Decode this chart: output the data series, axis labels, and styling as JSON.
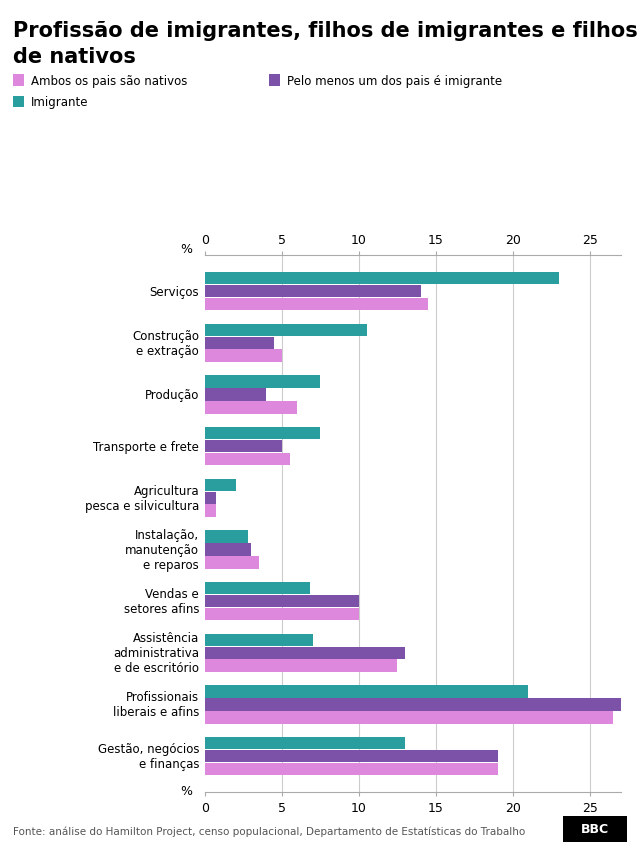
{
  "title_line1": "Profissão de imigrantes, filhos de imigrantes e filhos",
  "title_line2": "de nativos",
  "categories": [
    "Serviços",
    "Construção\ne extração",
    "Produção",
    "Transporte e frete",
    "Agricultura\npesca e silvicultura",
    "Instalação,\nmanutenção\ne reparos",
    "Vendas e\nsetores afins",
    "Assistência\nadministrativa\ne de escritório",
    "Profissionais\nliberais e afins",
    "Gestão, negócios\ne finanças"
  ],
  "imigrante": [
    23.0,
    10.5,
    7.5,
    7.5,
    2.0,
    2.8,
    6.8,
    7.0,
    21.0,
    13.0
  ],
  "pelo_menos_um": [
    14.0,
    4.5,
    4.0,
    5.0,
    0.7,
    3.0,
    10.0,
    13.0,
    27.5,
    19.0
  ],
  "ambos_nativos": [
    14.5,
    5.0,
    6.0,
    5.5,
    0.7,
    3.5,
    10.0,
    12.5,
    26.5,
    19.0
  ],
  "color_imigrante": "#2a9d9e",
  "color_pelo_menos_um": "#7b52a8",
  "color_ambos_nativos": "#dd88dd",
  "legend_labels": [
    "Ambos os pais são nativos",
    "Pelo menos um dos pais é imigrante",
    "Imigrante"
  ],
  "xlim": [
    0,
    27
  ],
  "xticks": [
    0,
    5,
    10,
    15,
    20,
    25
  ],
  "xtick_labels": [
    "0",
    "5",
    "10",
    "15",
    "20",
    "25"
  ],
  "footer": "Fonte: análise do Hamilton Project, censo populacional, Departamento de Estatísticas do Trabalho",
  "background_color": "#ffffff",
  "title_fontsize": 15,
  "bar_height": 0.24,
  "bar_gap": 0.01
}
